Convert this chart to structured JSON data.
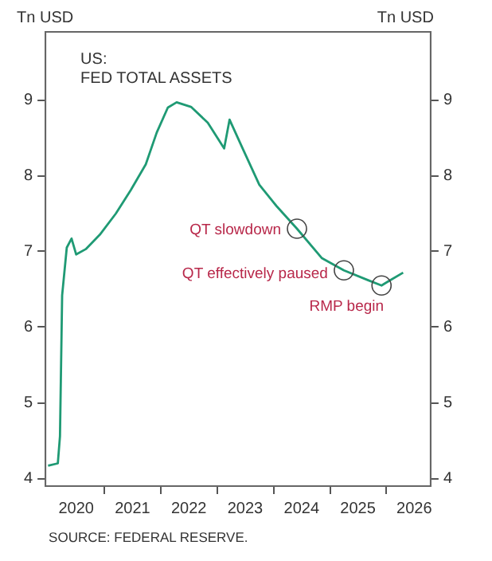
{
  "chart_data": {
    "type": "line",
    "title": "US:",
    "subtitle": "FED TOTAL ASSETS",
    "ylabel": "Tn USD",
    "y2label": "Tn USD",
    "x": [
      "2020-01-01",
      "2020-03-04",
      "2020-03-18",
      "2020-04-01",
      "2020-05-01",
      "2020-06-01",
      "2020-07-01",
      "2020-09-01",
      "2020-12-01",
      "2021-03-15",
      "2021-06-20",
      "2021-09-25",
      "2021-12-05",
      "2022-02-15",
      "2022-04-13",
      "2022-07-15",
      "2022-11-01",
      "2023-02-15",
      "2023-03-22",
      "2023-06-15",
      "2023-10-01",
      "2024-01-20",
      "2024-06-01",
      "2024-11-10",
      "2025-04-01",
      "2025-09-05",
      "2025-12-01",
      "2026-01-10",
      "2026-04-20"
    ],
    "series": [
      {
        "color": "#1f9a74",
        "values": [
          4.17,
          4.2,
          4.56,
          6.42,
          7.05,
          7.17,
          6.96,
          7.03,
          7.22,
          7.5,
          7.81,
          8.15,
          8.57,
          8.9,
          8.97,
          8.91,
          8.7,
          8.36,
          8.74,
          8.36,
          7.88,
          7.6,
          7.3,
          6.91,
          6.75,
          6.62,
          6.55,
          6.6,
          6.72
        ]
      }
    ],
    "xlim": [
      "2019-12-15",
      "2026-10-15"
    ],
    "xticks": [
      {
        "value": "2020-07-01",
        "label": "2020"
      },
      {
        "value": "2021-01-01",
        "label": null
      },
      {
        "value": "2021-07-01",
        "label": "2021"
      },
      {
        "value": "2022-01-01",
        "label": null
      },
      {
        "value": "2022-07-01",
        "label": "2022"
      },
      {
        "value": "2023-01-01",
        "label": null
      },
      {
        "value": "2023-07-01",
        "label": "2023"
      },
      {
        "value": "2024-01-01",
        "label": null
      },
      {
        "value": "2024-07-01",
        "label": "2024"
      },
      {
        "value": "2025-01-01",
        "label": null
      },
      {
        "value": "2025-07-01",
        "label": "2025"
      },
      {
        "value": "2026-01-01",
        "label": null
      },
      {
        "value": "2026-07-01",
        "label": "2026"
      }
    ],
    "ylim": [
      3.9,
      9.9
    ],
    "yticks": [
      4,
      5,
      6,
      7,
      8,
      9
    ],
    "y2lim": [
      3.9,
      9.9
    ],
    "y2ticks": [
      4,
      5,
      6,
      7,
      8,
      9
    ],
    "grid": false,
    "legend": false,
    "marker": "none",
    "line_style": "solid",
    "annotations": [
      {
        "text": "QT slowdown",
        "x": "2024-06-01",
        "y": 7.3
      },
      {
        "text": "QT effectively paused",
        "x": "2025-04-01",
        "y": 6.75
      },
      {
        "text": "RMP begin",
        "x": "2025-12-01",
        "y": 6.55
      },
      "SOURCE: FEDERAL RESERVE."
    ]
  }
}
